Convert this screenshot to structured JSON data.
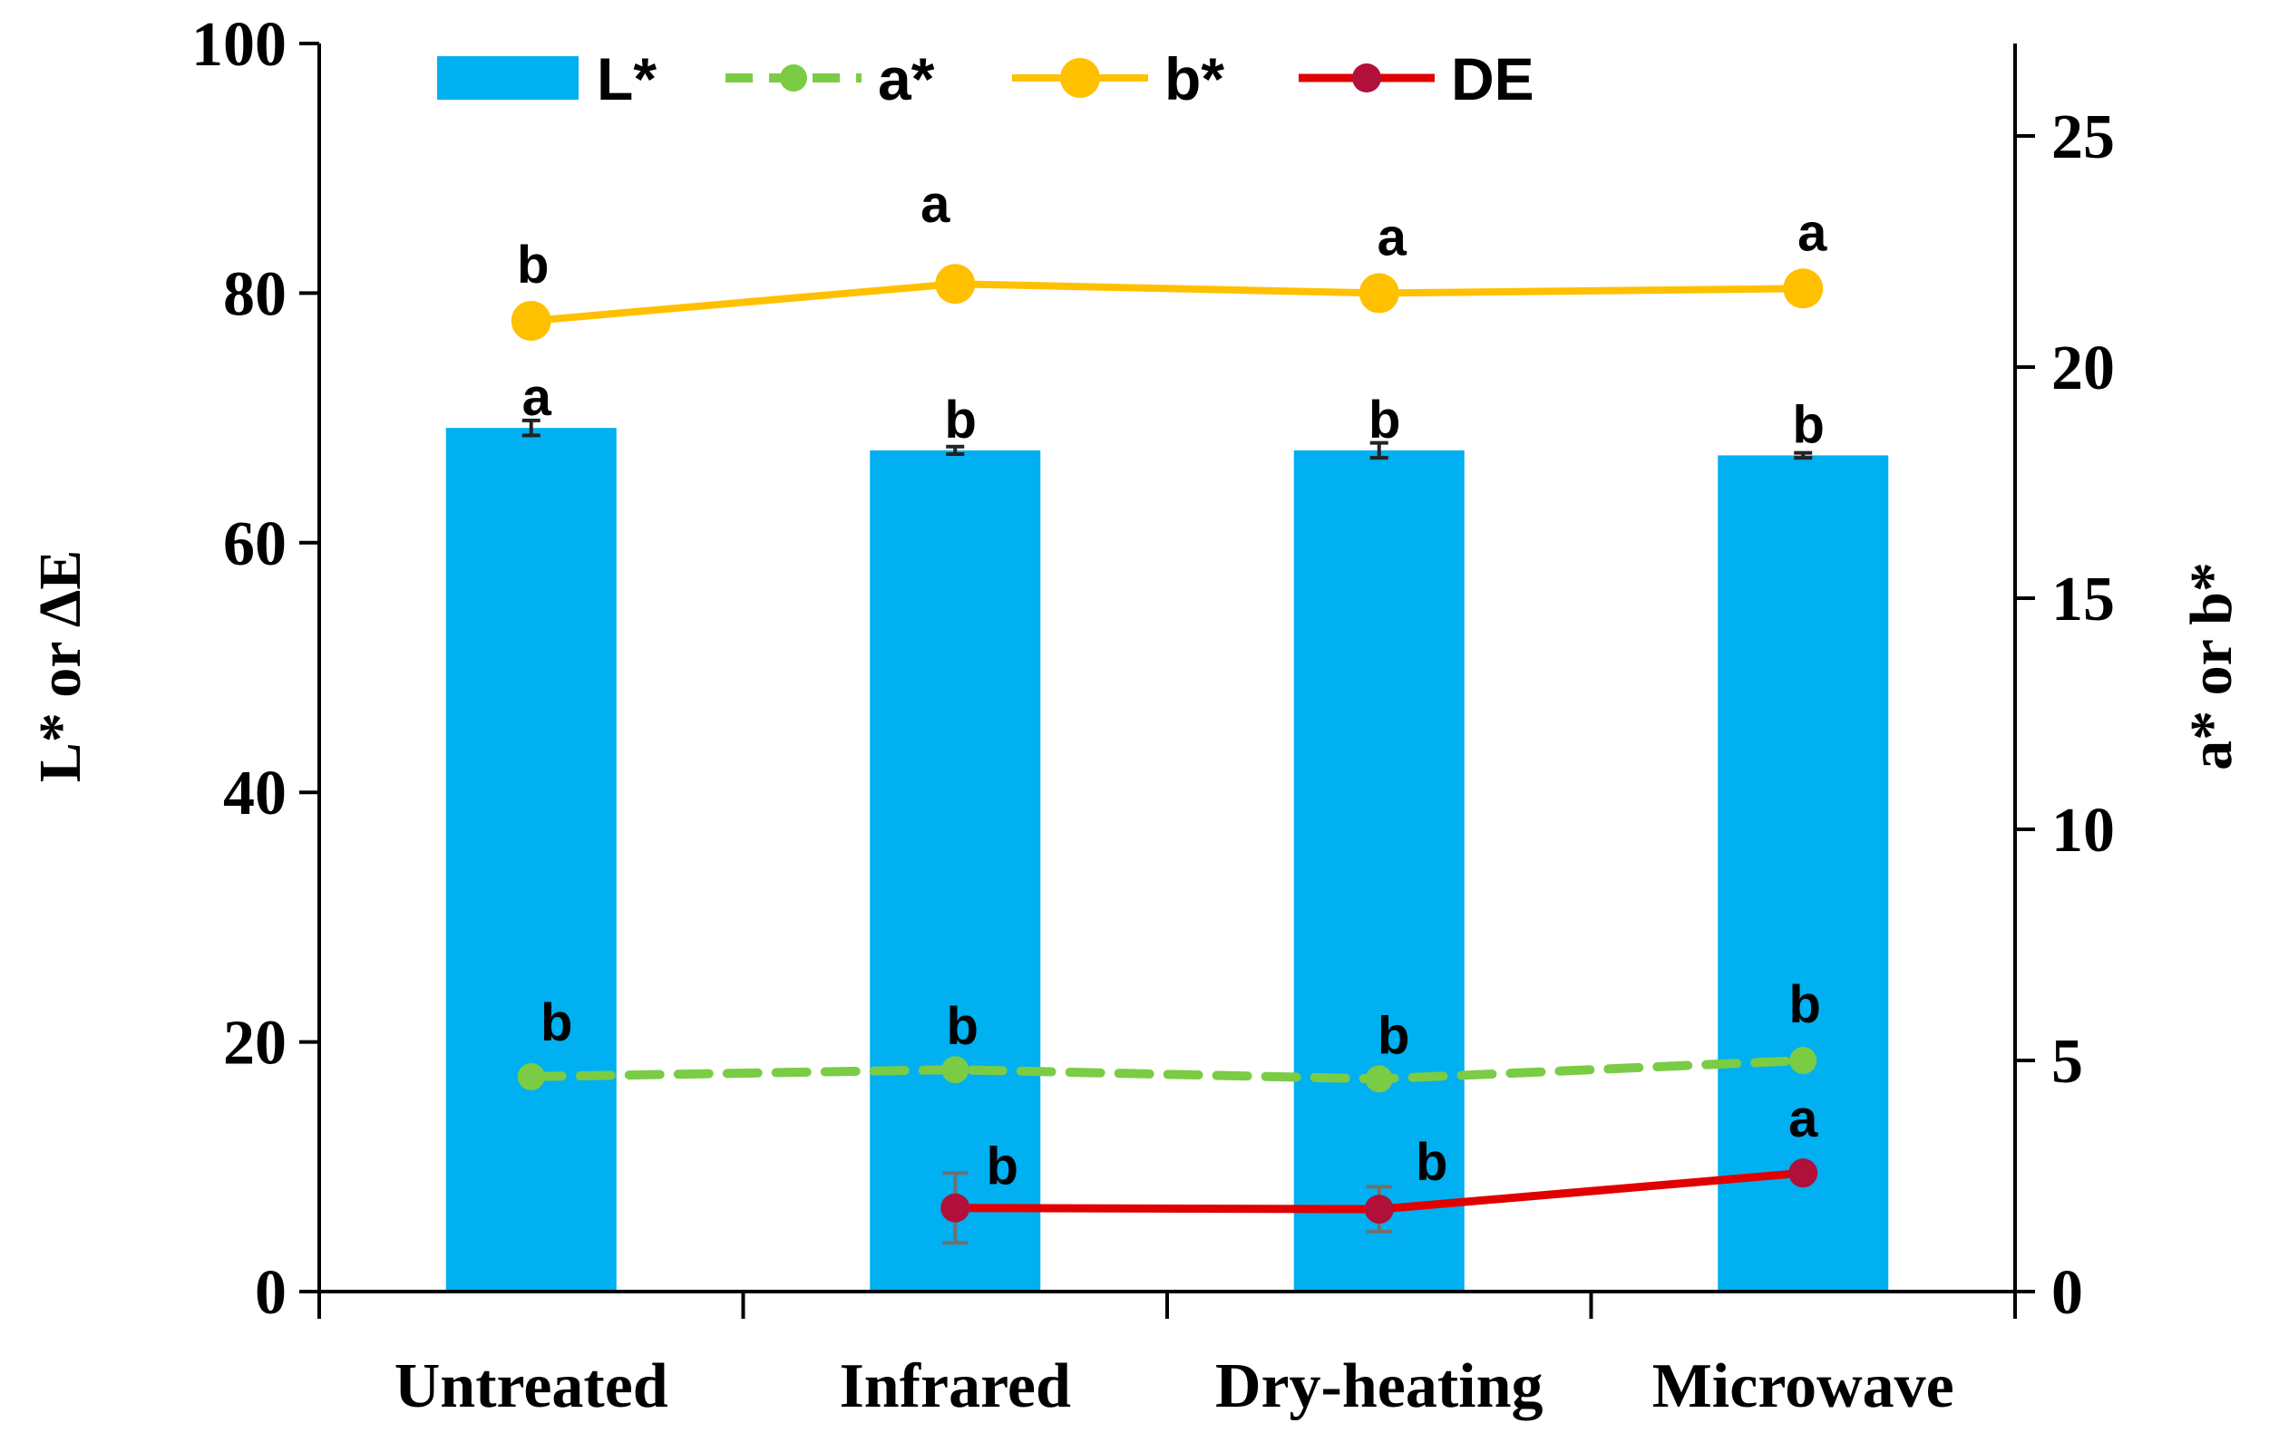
{
  "chart_data": {
    "type": "bar+line",
    "categories": [
      "Untreated",
      "Infrared",
      "Dry-heating",
      "Microwave"
    ],
    "left_axis": {
      "label": "L* or ΔE",
      "ylim": [
        0,
        100
      ],
      "ticks": [
        0,
        20,
        40,
        60,
        80,
        100
      ]
    },
    "right_axis": {
      "label": "a* or b*",
      "ylim": [
        0,
        27
      ],
      "ticks": [
        0,
        5,
        10,
        15,
        20,
        25
      ]
    },
    "series": [
      {
        "name": "L*",
        "kind": "bar",
        "axis": "left",
        "color": "#00B0F0",
        "values": [
          69.2,
          67.4,
          67.4,
          67.0
        ],
        "errors": [
          0.6,
          0.3,
          0.6,
          0.2
        ],
        "significance": [
          "a",
          "b",
          "b",
          "b"
        ]
      },
      {
        "name": "a*",
        "kind": "line-dashed",
        "axis": "right",
        "color": "#7ACC44",
        "values": [
          4.65,
          4.8,
          4.6,
          5.0
        ],
        "significance": [
          "b",
          "b",
          "b",
          "b"
        ]
      },
      {
        "name": "b*",
        "kind": "line",
        "axis": "right",
        "color": "#FFC000",
        "values": [
          21.0,
          21.8,
          21.6,
          21.7
        ],
        "significance": [
          "b",
          "a",
          "a",
          "a"
        ]
      },
      {
        "name": "DE",
        "kind": "line",
        "axis": "left",
        "color": "#E00000",
        "marker_color": "#B0103A",
        "values": [
          null,
          6.7,
          6.6,
          9.5
        ],
        "errors": [
          null,
          2.8,
          1.8,
          0.0
        ],
        "significance": [
          null,
          "b",
          "b",
          "a"
        ]
      }
    ],
    "legend": [
      "L*",
      "a*",
      "b*",
      "DE"
    ],
    "legend_position": "top-left"
  }
}
